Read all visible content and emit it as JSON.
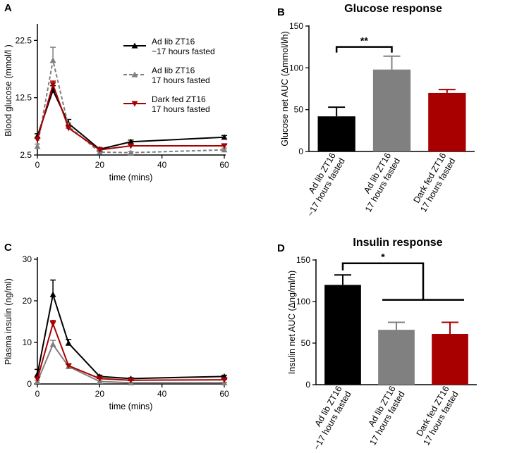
{
  "colors": {
    "adlib_approx": "#000000",
    "adlib_17": "#808080",
    "darkfed": "#a80000"
  },
  "chart_data": [
    {
      "panel": "A",
      "type": "line",
      "title": "",
      "xlabel": "time (mins)",
      "ylabel": "Blood glucose (mmol/l )",
      "xlim": [
        0,
        60
      ],
      "ylim": [
        2.5,
        25
      ],
      "xticks": [
        "0",
        "20",
        "40",
        "60"
      ],
      "yticks": [
        "2.5",
        "12.5",
        "22.5"
      ],
      "legend_position": "top-right",
      "x": [
        0,
        5,
        10,
        20,
        30,
        60
      ],
      "series": [
        {
          "name": "Ad lib ZT16\n~17 hours fasted",
          "lines": [
            "Ad lib ZT16",
            "~17 hours fasted"
          ],
          "color": "#000000",
          "marker": "triangle-up",
          "dash": false,
          "values": [
            5.8,
            13.8,
            8.0,
            3.5,
            4.8,
            5.6
          ],
          "errors": [
            0.4,
            0.8,
            0.7,
            0.3,
            0.3,
            0.3
          ]
        },
        {
          "name": "Ad lib ZT16\n17 hours fasted",
          "lines": [
            "Ad lib ZT16",
            "17 hours fasted"
          ],
          "color": "#808080",
          "marker": "triangle-up",
          "dash": true,
          "values": [
            4.0,
            19.0,
            7.5,
            3.0,
            2.9,
            3.4
          ],
          "errors": [
            0.4,
            2.3,
            0.6,
            0.3,
            0.2,
            0.3
          ]
        },
        {
          "name": "Dark fed ZT16\n17 hours fasted",
          "lines": [
            "Dark fed ZT16",
            "17 hours fasted"
          ],
          "color": "#a80000",
          "marker": "triangle-down",
          "dash": false,
          "values": [
            5.2,
            14.8,
            7.2,
            3.4,
            4.1,
            4.1
          ],
          "errors": [
            0.4,
            0.6,
            0.5,
            0.3,
            0.2,
            0.2
          ]
        }
      ]
    },
    {
      "panel": "B",
      "type": "bar",
      "title": "Glucose response",
      "xlabel": "",
      "ylabel": "Glucose net AUC (Δmmol/l/h)",
      "ylim": [
        0,
        150
      ],
      "yticks": [
        "0",
        "50",
        "100",
        "150"
      ],
      "categories": [
        "Ad lib ZT16\n~17 hours fasted",
        "Ad lib ZT16\n17 hours fasted",
        "Dark fed ZT16\n17 hours fasted"
      ],
      "category_lines": [
        [
          "Ad lib ZT16",
          "~17 hours fasted"
        ],
        [
          "Ad lib ZT16",
          "17 hours fasted"
        ],
        [
          "Dark fed ZT16",
          "17 hours fasted"
        ]
      ],
      "values": [
        42,
        98,
        70
      ],
      "errors": [
        11,
        16,
        4
      ],
      "bar_colors": [
        "#000000",
        "#808080",
        "#a80000"
      ],
      "annotation": {
        "text": "**",
        "between": [
          0,
          1
        ],
        "y": 125
      }
    },
    {
      "panel": "C",
      "type": "line",
      "title": "",
      "xlabel": "time (mins)",
      "ylabel": "Plasma insulin (ng/ml)",
      "xlim": [
        0,
        60
      ],
      "ylim": [
        0,
        30
      ],
      "xticks": [
        "0",
        "20",
        "40",
        "60"
      ],
      "yticks": [
        "0",
        "10",
        "20",
        "30"
      ],
      "x": [
        0,
        5,
        10,
        20,
        30,
        60
      ],
      "series": [
        {
          "name": "Ad lib ZT16 ~17 hours fasted",
          "color": "#000000",
          "marker": "triangle-up",
          "dash": false,
          "values": [
            2.3,
            21.5,
            9.8,
            1.8,
            1.3,
            1.8
          ],
          "errors": [
            1.2,
            3.5,
            0.9,
            0.3,
            0.2,
            0.3
          ]
        },
        {
          "name": "Ad lib ZT16 17 hours fasted",
          "color": "#808080",
          "marker": "triangle-up",
          "dash": false,
          "values": [
            0.6,
            9.5,
            4.2,
            0.6,
            0.3,
            0.3
          ],
          "errors": [
            0.3,
            1.0,
            0.5,
            0.2,
            0.1,
            0.1
          ]
        },
        {
          "name": "Dark fed ZT16 17 hours fasted",
          "color": "#a80000",
          "marker": "triangle-down",
          "dash": false,
          "values": [
            1.2,
            14.5,
            4.4,
            1.3,
            0.9,
            1.0
          ],
          "errors": [
            0.3,
            0.8,
            0.4,
            0.2,
            0.1,
            0.1
          ]
        }
      ]
    },
    {
      "panel": "D",
      "type": "bar",
      "title": "Insulin response",
      "xlabel": "",
      "ylabel": "Insulin net AUC (Δng/ml/h)",
      "ylim": [
        0,
        150
      ],
      "yticks": [
        "0",
        "50",
        "100",
        "150"
      ],
      "categories": [
        "Ad lib ZT16\n~17 hours fasted",
        "Ad lib ZT16\n17 hours fasted",
        "Dark fed ZT16\n17 hours fasted"
      ],
      "category_lines": [
        [
          "Ad lib ZT16",
          "~17 hours fasted"
        ],
        [
          "Ad lib ZT16",
          "17 hours fasted"
        ],
        [
          "Dark fed ZT16",
          "17 hours fasted"
        ]
      ],
      "values": [
        120,
        66,
        61
      ],
      "errors": [
        12,
        9,
        14
      ],
      "bar_colors": [
        "#000000",
        "#808080",
        "#a80000"
      ],
      "annotation": {
        "text": "*",
        "from": 0,
        "to_group": [
          1,
          2
        ],
        "y": 146,
        "group_y": 102
      }
    }
  ]
}
